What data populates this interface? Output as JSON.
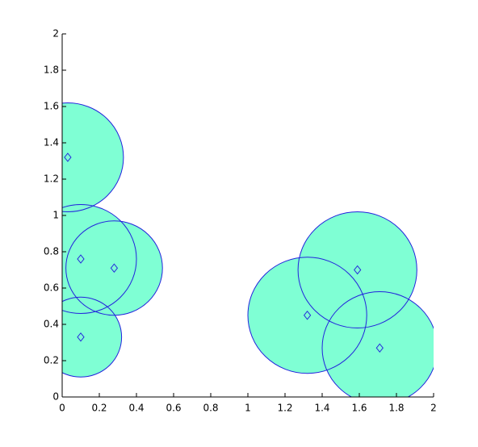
{
  "chart_data": {
    "type": "scatter",
    "x": [
      0.03,
      0.1,
      0.28,
      0.1,
      1.32,
      1.59,
      1.71
    ],
    "values": [
      1.32,
      0.76,
      0.71,
      0.33,
      0.45,
      0.7,
      0.27
    ],
    "radii": [
      0.3,
      0.3,
      0.26,
      0.22,
      0.32,
      0.32,
      0.31
    ],
    "fill_color": "#7fffd4",
    "edge_color": "#2222dd",
    "xlim": [
      0,
      2
    ],
    "ylim": [
      0,
      2
    ],
    "xticks": [
      0,
      0.2,
      0.4,
      0.6,
      0.8,
      1,
      1.2,
      1.4,
      1.6,
      1.8,
      2
    ],
    "yticks": [
      0,
      0.2,
      0.4,
      0.6,
      0.8,
      1,
      1.2,
      1.4,
      1.6,
      1.8,
      2
    ]
  }
}
